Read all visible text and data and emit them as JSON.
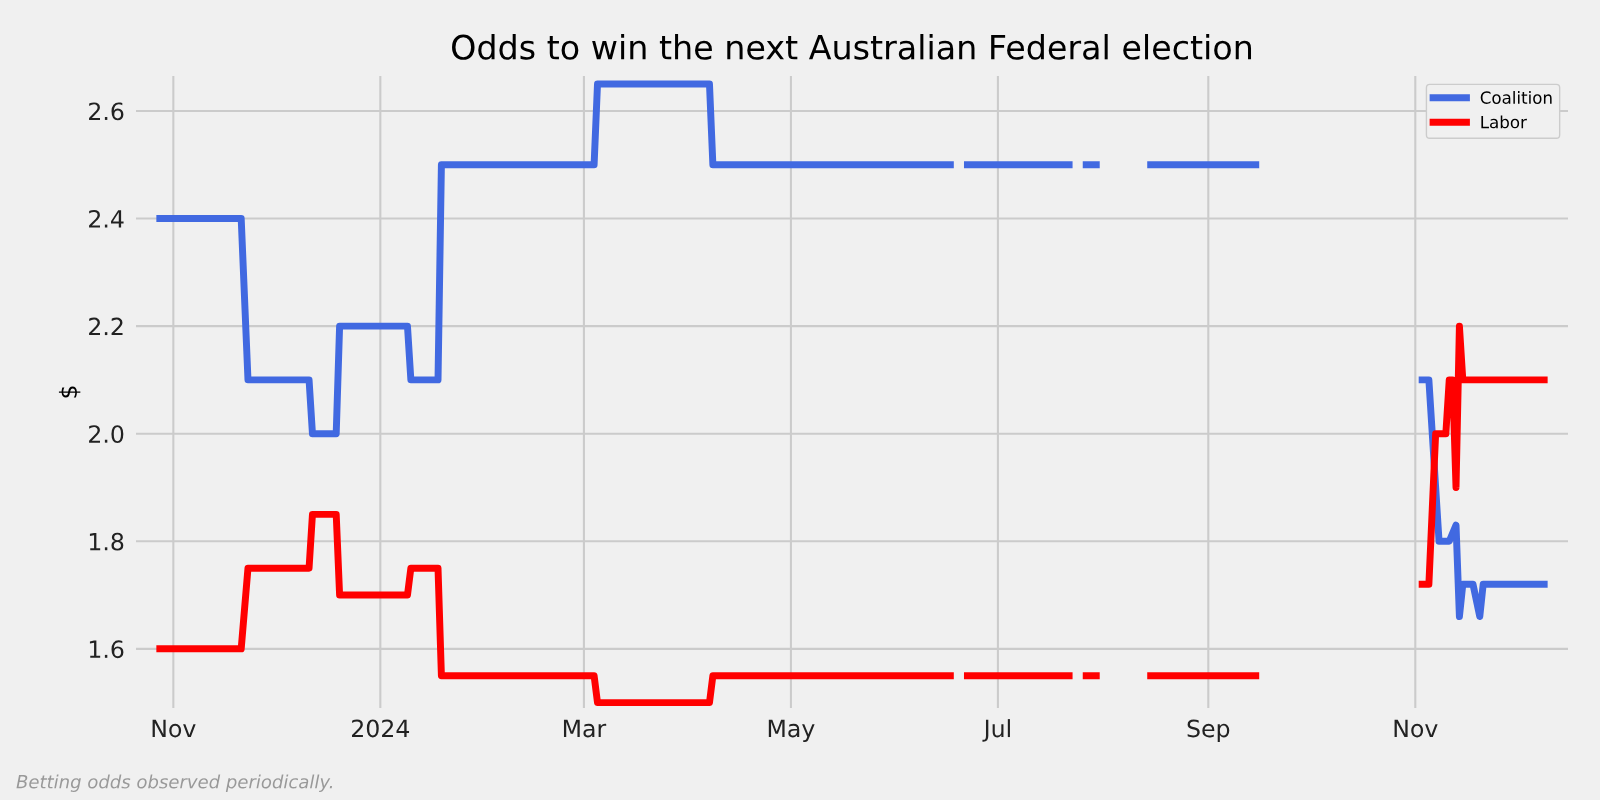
{
  "chart_data": {
    "type": "line",
    "title": "Odds to win the next Australian Federal election",
    "ylabel": "$",
    "xlim": [
      "2023-10-21",
      "2024-12-16"
    ],
    "xticks": [
      {
        "value": "2023-11-01",
        "label": "Nov"
      },
      {
        "value": "2024-01-01",
        "label": "2024"
      },
      {
        "value": "2024-03-01",
        "label": "Mar"
      },
      {
        "value": "2024-05-01",
        "label": "May"
      },
      {
        "value": "2024-07-01",
        "label": "Jul"
      },
      {
        "value": "2024-09-01",
        "label": "Sep"
      },
      {
        "value": "2024-11-01",
        "label": "Nov"
      }
    ],
    "ylim": [
      1.49,
      2.665
    ],
    "yticks": [
      1.6,
      1.8,
      {
        "value": 2.0,
        "label": "2.0"
      },
      2.2,
      2.4,
      2.6
    ],
    "grid": true,
    "legend": "top right",
    "line_style": "solid",
    "marker": "none",
    "annotations": [
      "Betting odds observed periodically."
    ],
    "series": [
      {
        "name": "Coalition",
        "color": "#4169e1",
        "x": [
          "2023-10-27",
          "2023-11-21",
          "2023-11-23",
          "2023-12-11",
          "2023-12-12",
          "2023-12-19",
          "2023-12-20",
          "2024-01-09",
          "2024-01-10",
          "2024-01-18",
          "2024-01-19",
          "2024-03-04",
          "2024-03-05",
          "2024-04-07",
          "2024-04-08",
          "2024-06-18",
          "2024-06-19",
          "2024-06-21",
          "2024-07-23",
          "2024-07-24",
          "2024-07-26",
          "2024-07-31",
          "2024-08-01",
          "2024-08-14",
          "2024-09-16",
          "2024-09-17",
          "2024-11-02",
          "2024-11-05",
          "2024-11-08",
          "2024-11-11",
          "2024-11-13",
          "2024-11-14",
          "2024-11-15",
          "2024-11-18",
          "2024-11-20",
          "2024-11-21",
          "2024-12-10"
        ],
        "values": [
          2.4,
          2.4,
          2.1,
          2.1,
          2.0,
          2.0,
          2.2,
          2.2,
          2.1,
          2.1,
          2.5,
          2.5,
          2.65,
          2.65,
          2.5,
          2.5,
          null,
          2.5,
          2.5,
          null,
          2.5,
          2.5,
          null,
          2.5,
          2.5,
          null,
          2.1,
          2.1,
          1.8,
          1.8,
          1.83,
          1.66,
          1.72,
          1.72,
          1.66,
          1.72,
          1.72
        ]
      },
      {
        "name": "Labor",
        "color": "#ff0000",
        "x": [
          "2023-10-27",
          "2023-11-21",
          "2023-11-23",
          "2023-12-11",
          "2023-12-12",
          "2023-12-19",
          "2023-12-20",
          "2024-01-09",
          "2024-01-10",
          "2024-01-18",
          "2024-01-19",
          "2024-03-04",
          "2024-03-05",
          "2024-04-07",
          "2024-04-08",
          "2024-06-18",
          "2024-06-19",
          "2024-06-21",
          "2024-07-23",
          "2024-07-24",
          "2024-07-26",
          "2024-07-31",
          "2024-08-01",
          "2024-08-14",
          "2024-09-16",
          "2024-09-17",
          "2024-11-02",
          "2024-11-05",
          "2024-11-07",
          "2024-11-10",
          "2024-11-11",
          "2024-11-12",
          "2024-11-13",
          "2024-11-14",
          "2024-11-15",
          "2024-12-10"
        ],
        "values": [
          1.6,
          1.6,
          1.75,
          1.75,
          1.85,
          1.85,
          1.7,
          1.7,
          1.75,
          1.75,
          1.55,
          1.55,
          1.5,
          1.5,
          1.55,
          1.55,
          null,
          1.55,
          1.55,
          null,
          1.55,
          1.55,
          null,
          1.55,
          1.55,
          null,
          1.72,
          1.72,
          2.0,
          2.0,
          2.1,
          2.1,
          1.9,
          2.2,
          2.1,
          2.1
        ]
      }
    ]
  }
}
